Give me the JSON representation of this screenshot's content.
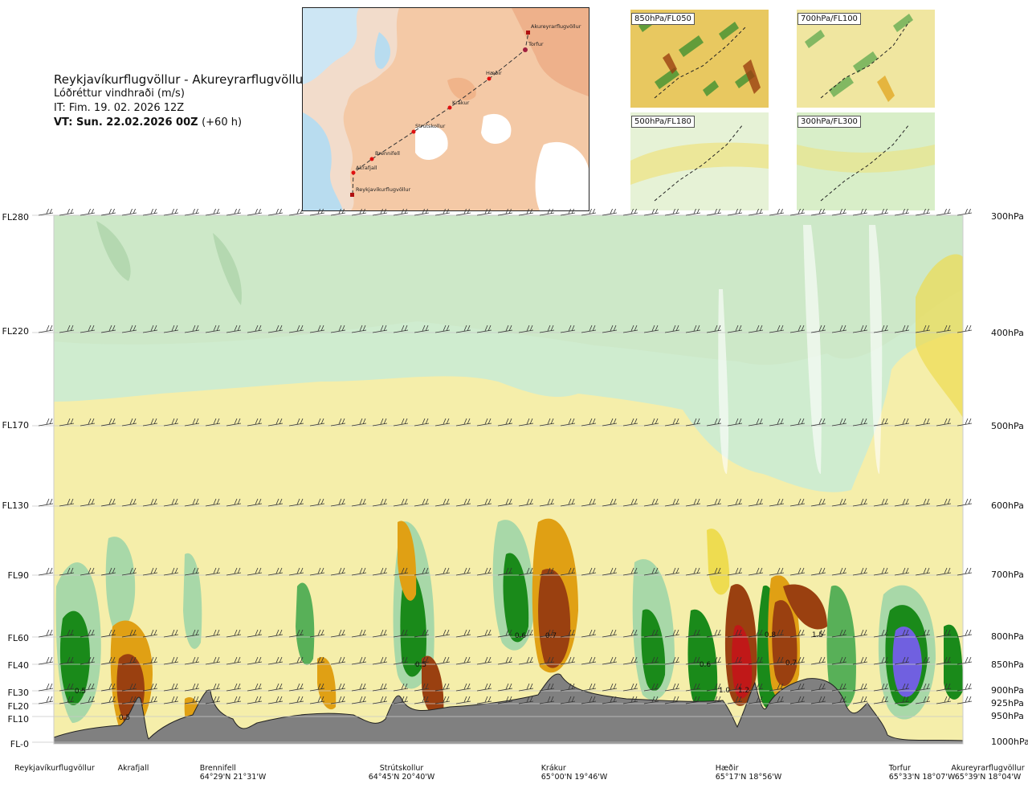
{
  "header": {
    "route": "Reykjavíkurflugvöllur - Akureyrarflugvöllur",
    "parameter": "Lóðréttur vindhraði (m/s)",
    "issue_time": "IT: Fim. 19. 02. 2026 12Z",
    "valid_time": "VT: Sun. 22.02.2026 00Z",
    "lead_time": "(+60 h)"
  },
  "route_map": {
    "points": [
      "Akureyrarflugvöllur",
      "Torfur",
      "Hæðir",
      "Krákur",
      "Strútskollur",
      "Brennifell",
      "Akrafjall",
      "Reykjavíkurflugvöllur"
    ]
  },
  "thumbnails": [
    {
      "label": "850hPa/FL050"
    },
    {
      "label": "700hPa/FL100"
    },
    {
      "label": "500hPa/FL180"
    },
    {
      "label": "300hPa/FL300"
    }
  ],
  "chart_data": {
    "type": "heatmap",
    "title": "Lóðréttur vindhraði (m/s)",
    "y_left_ticks": [
      "FL280",
      "FL220",
      "FL170",
      "FL130",
      "FL90",
      "FL60",
      "FL40",
      "FL30",
      "FL20",
      "FL10",
      "FL-0"
    ],
    "y_right_ticks": [
      "300hPa",
      "400hPa",
      "500hPa",
      "600hPa",
      "700hPa",
      "800hPa",
      "850hPa",
      "900hPa",
      "925hPa",
      "950hPa",
      "1000hPa"
    ],
    "pressure_levels": [
      300,
      400,
      500,
      600,
      700,
      800,
      850,
      900,
      925,
      950,
      1000
    ],
    "x_positions": [
      {
        "name": "Reykjavíkurflugvöllur",
        "coord": ""
      },
      {
        "name": "Akrafjall",
        "coord": ""
      },
      {
        "name": "Brennifell",
        "coord": "64°29'N 21°31'W"
      },
      {
        "name": "Strútskollur",
        "coord": "64°45'N 20°40'W"
      },
      {
        "name": "Krákur",
        "coord": "65°00'N 19°46'W"
      },
      {
        "name": "Hæðir",
        "coord": "65°17'N 18°56'W"
      },
      {
        "name": "Torfur",
        "coord": "65°33'N 18°07'W"
      },
      {
        "name": "Akureyrarflugvöllur",
        "coord": "65°39'N 18°04'W"
      }
    ],
    "contour_labels": [
      "0.5",
      "0.5",
      "0.6",
      "0.5",
      "0.7",
      "0.6",
      "1.0",
      "1.2",
      "0.8",
      "0.7",
      "1.5"
    ],
    "colors": {
      "up_strong": "#7060e0",
      "up_med": "#1a8a1a",
      "up_light": "#58b058",
      "up_faint": "#a8d8a8",
      "up_vfaint": "#cfeccf",
      "neutral": "#eaf6e0",
      "down_faint": "#f5eeaa",
      "down_light": "#eedc50",
      "down_med": "#e0a014",
      "down_strong": "#9a4010",
      "down_extreme": "#c01818",
      "terrain": "#808080"
    }
  }
}
